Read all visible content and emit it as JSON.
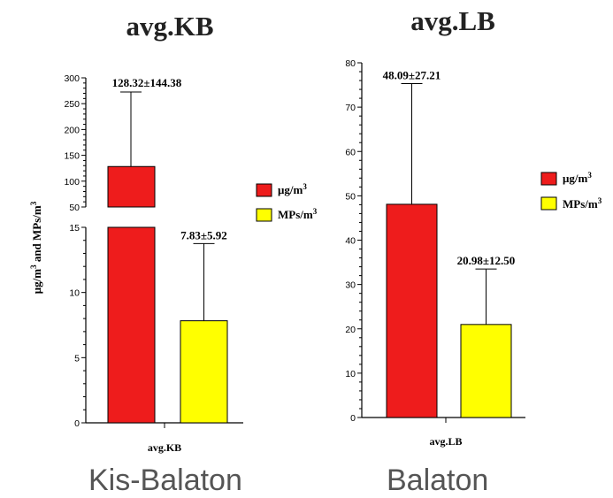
{
  "colors": {
    "ugm3": "#EE1C1C",
    "mps": "#FFFF00",
    "axis": "#000000"
  },
  "legend": [
    {
      "label": "μg/m",
      "sup": "3",
      "color": "#EE1C1C"
    },
    {
      "label": "MPs/m",
      "sup": "3",
      "color": "#FFFF00"
    }
  ],
  "y_axis_label": {
    "t1": "μg/m",
    "s1": "3",
    "t2": " and MPs/m",
    "s2": "3"
  },
  "captions": {
    "left": "Kis-Balaton",
    "right": "Balaton"
  },
  "chart_data": [
    {
      "type": "bar",
      "title": "avg.KB",
      "categories": [
        "avg.KB"
      ],
      "xlabel": "avg.KB",
      "broken_axis": true,
      "ylim_lower": [
        0,
        15
      ],
      "ylim_upper": [
        50,
        300
      ],
      "yticks_lower": [
        0,
        5,
        10,
        15
      ],
      "yticks_upper": [
        50,
        100,
        150,
        200,
        250,
        300
      ],
      "series": [
        {
          "name": "μg/m3",
          "values": [
            128.32
          ],
          "error": [
            144.38
          ],
          "label": "128.32±144.38"
        },
        {
          "name": "MPs/m3",
          "values": [
            7.83
          ],
          "error": [
            5.92
          ],
          "label": "7.83±5.92"
        }
      ]
    },
    {
      "type": "bar",
      "title": "avg.LB",
      "categories": [
        "avg.LB"
      ],
      "xlabel": "avg.LB",
      "ylim": [
        0,
        80
      ],
      "yticks": [
        0,
        10,
        20,
        30,
        40,
        50,
        60,
        70,
        80
      ],
      "series": [
        {
          "name": "μg/m3",
          "values": [
            48.09
          ],
          "error": [
            27.21
          ],
          "label": "48.09±27.21"
        },
        {
          "name": "MPs/m3",
          "values": [
            20.98
          ],
          "error": [
            12.5
          ],
          "label": "20.98±12.50"
        }
      ]
    }
  ]
}
